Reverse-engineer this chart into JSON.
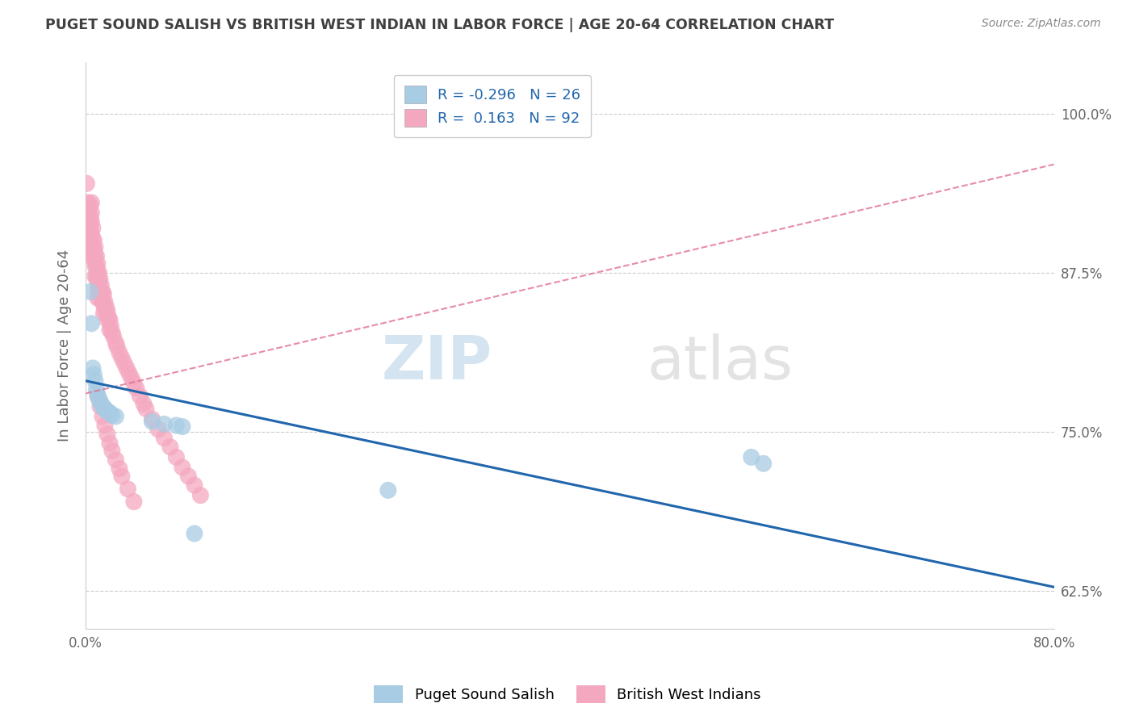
{
  "title": "PUGET SOUND SALISH VS BRITISH WEST INDIAN IN LABOR FORCE | AGE 20-64 CORRELATION CHART",
  "source": "Source: ZipAtlas.com",
  "xlim": [
    0.0,
    0.8
  ],
  "ylim": [
    0.595,
    1.04
  ],
  "ylabel": "In Labor Force | Age 20-64",
  "legend_r_blue": "-0.296",
  "legend_n_blue": "26",
  "legend_r_pink": "0.163",
  "legend_n_pink": "92",
  "blue_scatter_x": [
    0.004,
    0.005,
    0.006,
    0.007,
    0.008,
    0.009,
    0.01,
    0.011,
    0.012,
    0.013,
    0.014,
    0.015,
    0.016,
    0.017,
    0.018,
    0.02,
    0.022,
    0.025,
    0.055,
    0.065,
    0.075,
    0.08,
    0.09,
    0.25,
    0.55,
    0.56
  ],
  "blue_scatter_y": [
    0.86,
    0.835,
    0.8,
    0.795,
    0.79,
    0.783,
    0.779,
    0.776,
    0.774,
    0.772,
    0.77,
    0.769,
    0.768,
    0.767,
    0.766,
    0.765,
    0.763,
    0.762,
    0.758,
    0.756,
    0.755,
    0.754,
    0.67,
    0.704,
    0.73,
    0.725
  ],
  "pink_scatter_x": [
    0.001,
    0.002,
    0.002,
    0.003,
    0.003,
    0.003,
    0.004,
    0.004,
    0.004,
    0.005,
    0.005,
    0.005,
    0.005,
    0.005,
    0.006,
    0.006,
    0.006,
    0.006,
    0.007,
    0.007,
    0.007,
    0.008,
    0.008,
    0.008,
    0.008,
    0.009,
    0.009,
    0.009,
    0.01,
    0.01,
    0.01,
    0.01,
    0.01,
    0.011,
    0.011,
    0.012,
    0.012,
    0.012,
    0.013,
    0.013,
    0.014,
    0.014,
    0.015,
    0.015,
    0.015,
    0.016,
    0.016,
    0.017,
    0.018,
    0.018,
    0.019,
    0.02,
    0.02,
    0.021,
    0.022,
    0.023,
    0.025,
    0.026,
    0.028,
    0.03,
    0.032,
    0.034,
    0.036,
    0.038,
    0.04,
    0.042,
    0.045,
    0.048,
    0.05,
    0.055,
    0.06,
    0.065,
    0.07,
    0.075,
    0.08,
    0.085,
    0.09,
    0.095,
    0.01,
    0.012,
    0.014,
    0.016,
    0.018,
    0.02,
    0.022,
    0.025,
    0.028,
    0.03,
    0.035,
    0.04
  ],
  "pink_scatter_y": [
    0.945,
    0.93,
    0.92,
    0.925,
    0.915,
    0.905,
    0.928,
    0.918,
    0.908,
    0.93,
    0.922,
    0.915,
    0.905,
    0.895,
    0.91,
    0.902,
    0.895,
    0.888,
    0.9,
    0.892,
    0.885,
    0.895,
    0.887,
    0.88,
    0.872,
    0.888,
    0.88,
    0.872,
    0.882,
    0.875,
    0.868,
    0.862,
    0.855,
    0.875,
    0.868,
    0.87,
    0.862,
    0.855,
    0.865,
    0.858,
    0.86,
    0.852,
    0.858,
    0.85,
    0.843,
    0.852,
    0.845,
    0.848,
    0.845,
    0.838,
    0.84,
    0.838,
    0.83,
    0.833,
    0.828,
    0.825,
    0.82,
    0.817,
    0.812,
    0.808,
    0.804,
    0.8,
    0.796,
    0.792,
    0.788,
    0.784,
    0.778,
    0.772,
    0.768,
    0.76,
    0.752,
    0.745,
    0.738,
    0.73,
    0.722,
    0.715,
    0.708,
    0.7,
    0.778,
    0.77,
    0.762,
    0.755,
    0.748,
    0.741,
    0.735,
    0.728,
    0.721,
    0.715,
    0.705,
    0.695
  ],
  "blue_line_x": [
    0.0,
    0.8
  ],
  "blue_line_y": [
    0.79,
    0.628
  ],
  "pink_line_x": [
    0.0,
    0.8
  ],
  "pink_line_y": [
    0.78,
    0.96
  ],
  "watermark_zi": "ZIP",
  "watermark_atlas": "atlas",
  "blue_color": "#a8cce4",
  "pink_color": "#f4a8c0",
  "blue_line_color": "#2166ac",
  "pink_line_color": "#e07090",
  "grid_color": "#cccccc",
  "title_color": "#404040",
  "source_color": "#888888",
  "yticks": [
    0.625,
    0.75,
    0.875,
    1.0
  ],
  "ytick_labels": [
    "62.5%",
    "75.0%",
    "87.5%",
    "100.0%"
  ],
  "xticks": [
    0.0,
    0.8
  ],
  "xtick_labels": [
    "0.0%",
    "80.0%"
  ]
}
